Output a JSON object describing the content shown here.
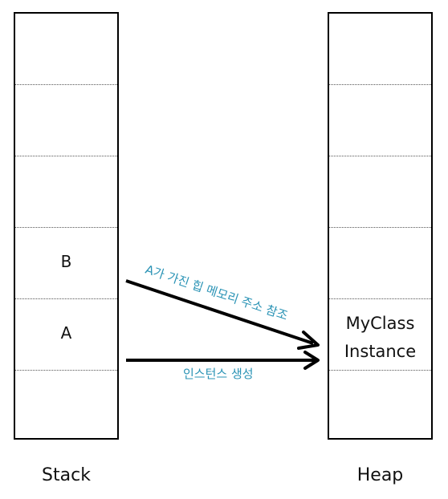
{
  "stack": {
    "label": "Stack",
    "cells": [
      "",
      "",
      "",
      "B",
      "A",
      ""
    ]
  },
  "heap": {
    "label": "Heap",
    "cells": [
      "",
      "",
      "",
      "",
      "MyClass\nInstance",
      ""
    ],
    "instance_line1": "MyClass",
    "instance_line2": "Instance"
  },
  "arrows": {
    "b_ref_label": "A가 가진 힙 메모리 주소 참조",
    "a_create_label": "인스턴스 생성"
  },
  "colors": {
    "arrow": "#000000",
    "annotation": "#2a93b5"
  }
}
